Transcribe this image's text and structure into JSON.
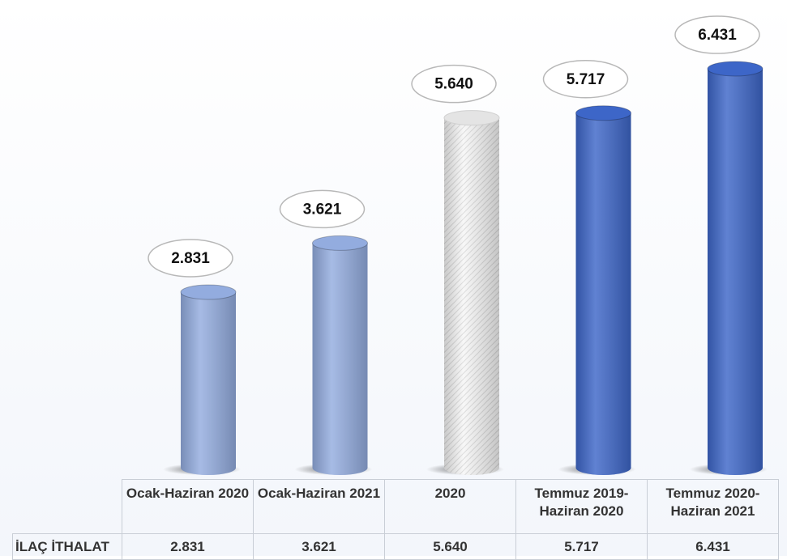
{
  "chart_data": {
    "type": "bar",
    "categories": [
      "Ocak-Haziran 2020",
      "Ocak-Haziran 2021",
      "2020",
      "Temmuz 2019-Haziran 2020",
      "Temmuz 2020-Haziran 2021"
    ],
    "series": [
      {
        "name": "İLAÇ İTHALAT",
        "colors": [
          "#93acdf",
          "#93acdf",
          "#f2f2f2",
          "#3d66c8",
          "#3d66c8"
        ],
        "values": [
          2831,
          3621,
          5640,
          5717,
          6431
        ],
        "value_labels": [
          "2.831",
          "3.621",
          "5.640",
          "5.717",
          "6.431"
        ]
      }
    ]
  }
}
